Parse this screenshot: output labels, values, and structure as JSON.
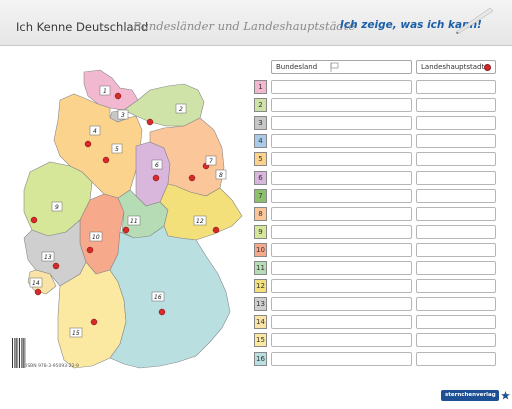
{
  "header": {
    "title": "Ich Kenne Deutschland",
    "subtitle": "Bundesländer und Landeshauptstädte",
    "right_text": "Ich zeige, was ich kann!"
  },
  "table": {
    "col_bundesland": "Bundesland",
    "col_hauptstadt": "Landeshauptstadt",
    "rows": [
      {
        "num": "1",
        "color": "#f2b8cf"
      },
      {
        "num": "2",
        "color": "#cfe3a8"
      },
      {
        "num": "3",
        "color": "#c7c7c7"
      },
      {
        "num": "4",
        "color": "#a9cbe9"
      },
      {
        "num": "5",
        "color": "#fbd38c"
      },
      {
        "num": "6",
        "color": "#d9b7dc"
      },
      {
        "num": "7",
        "color": "#8dc06a"
      },
      {
        "num": "8",
        "color": "#fbc69a"
      },
      {
        "num": "9",
        "color": "#d6e79a"
      },
      {
        "num": "10",
        "color": "#f7a98c"
      },
      {
        "num": "11",
        "color": "#b6dcb6"
      },
      {
        "num": "12",
        "color": "#f3e07a"
      },
      {
        "num": "13",
        "color": "#cfcfcf"
      },
      {
        "num": "14",
        "color": "#f9e3a6"
      },
      {
        "num": "15",
        "color": "#fbe9a2"
      },
      {
        "num": "16",
        "color": "#b9dfe0"
      }
    ]
  },
  "map": {
    "labels": [
      "1",
      "2",
      "3",
      "4",
      "5",
      "6",
      "7",
      "8",
      "9",
      "10",
      "11",
      "12",
      "13",
      "14",
      "15",
      "16"
    ]
  },
  "footer": {
    "isbn": "ISBN 978-3-95093-22-9",
    "logo": "sternchenverlag"
  }
}
